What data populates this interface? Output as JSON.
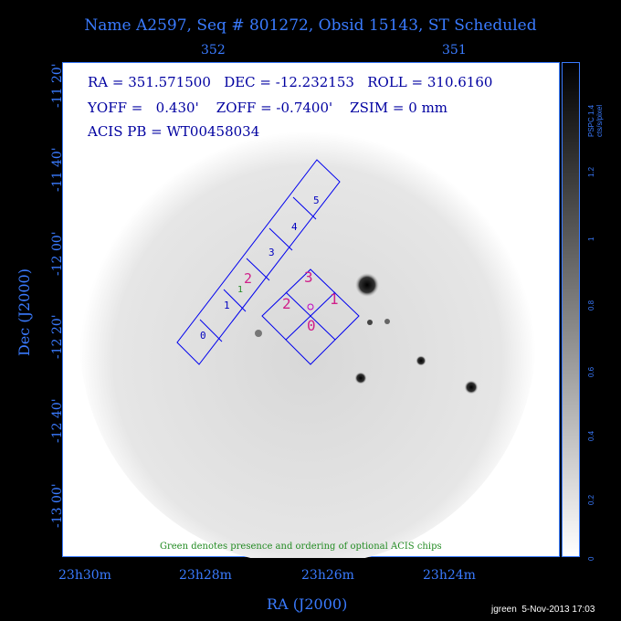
{
  "title": "Name A2597, Seq # 801272, Obsid 15143, ST Scheduled",
  "top_ticks": [
    "352",
    "351"
  ],
  "dec_ticks": [
    "-11 20'",
    "-11 40'",
    "-12 00'",
    "-12 20'",
    "-12 40'",
    "-13 00'"
  ],
  "ra_ticks": [
    "23h30m",
    "23h28m",
    "23h26m",
    "23h24m"
  ],
  "axis_labels": {
    "y": "Dec (J2000)",
    "x": "RA (J2000)"
  },
  "annotations": {
    "line1": "RA = 351.571500   DEC = -12.232153   ROLL = 310.6160",
    "line2": "YOFF =   0.430'    ZOFF = -0.7400'    ZSIM = 0 mm",
    "line3": "ACIS PB = WT00458034"
  },
  "chips": {
    "acis_s": [
      "0",
      "1",
      "2",
      "3",
      "4",
      "5"
    ],
    "acis_i": [
      "0",
      "1",
      "2",
      "3"
    ],
    "optional_marker": "1"
  },
  "colorbar": {
    "label": "PSPC cts/s/pixel",
    "ticks": [
      "1.4",
      "1.2",
      "1",
      "0.8",
      "0.6",
      "0.4",
      "0.2",
      "0"
    ]
  },
  "note": "Green denotes presence and ordering of optional ACIS chips",
  "footer": "jgreen  5-Nov-2013 17:03"
}
